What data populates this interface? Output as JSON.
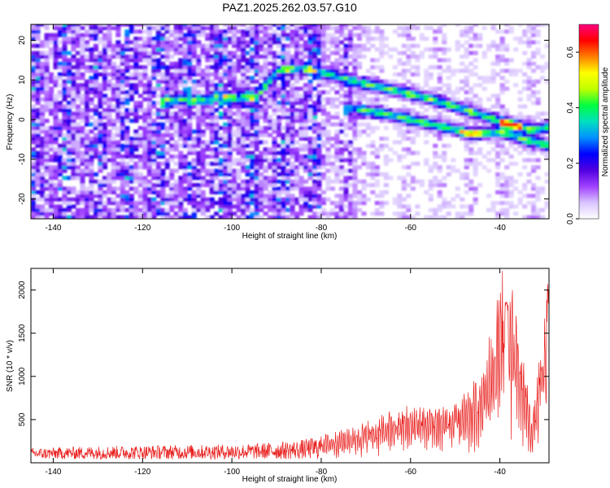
{
  "figure": {
    "title": "PAZ1.2025.262.03.57.G10"
  },
  "chart_data": [
    {
      "type": "heatmap",
      "title": "PAZ1.2025.262.03.57.G10",
      "xlabel": "Height of straight line (km)",
      "ylabel": "Frequency (Hz)",
      "xlim": [
        -145,
        -29
      ],
      "ylim": [
        -25,
        24
      ],
      "x_ticks": [
        -140,
        -120,
        -100,
        -80,
        -60,
        -40
      ],
      "y_ticks": [
        -20,
        -10,
        0,
        10,
        20
      ],
      "grid": false,
      "colorbar": {
        "label": "Normalized spectral amplitude",
        "range": [
          0,
          0.7
        ],
        "ticks": [
          0.0,
          0.2,
          0.4,
          0.6
        ],
        "colormap": [
          "#ffffff",
          "#d9c4ff",
          "#a040ff",
          "#5000e0",
          "#0000ff",
          "#0090ff",
          "#00e0c0",
          "#00ff40",
          "#c0ff00",
          "#ffff00",
          "#ff8000",
          "#ff0000",
          "#ff0080"
        ]
      },
      "features": [
        {
          "name": "tone-upper",
          "points": [
            [
              -116,
              4.5
            ],
            [
              -108,
              4.8
            ],
            [
              -95,
              5.5
            ],
            [
              -90,
              12
            ],
            [
              -85,
              12.5
            ],
            [
              -80,
              11.5
            ],
            [
              -72,
              9
            ],
            [
              -68,
              8
            ],
            [
              -62,
              6.5
            ],
            [
              -55,
              4.5
            ],
            [
              -48,
              2
            ],
            [
              -40,
              -1
            ],
            [
              -33,
              -3
            ],
            [
              -29,
              -2
            ]
          ]
        },
        {
          "name": "tone-lower",
          "points": [
            [
              -75,
              2.5
            ],
            [
              -68,
              1.5
            ],
            [
              -60,
              -0.5
            ],
            [
              -52,
              -2.5
            ],
            [
              -47,
              -4
            ],
            [
              -40,
              -3.5
            ],
            [
              -35,
              -5.5
            ],
            [
              -29,
              -7
            ]
          ]
        }
      ]
    },
    {
      "type": "line",
      "xlabel": "Height of straight line (km)",
      "ylabel": "SNR (10 * v/v)",
      "xlim": [
        -145,
        -29
      ],
      "ylim": [
        0,
        2250
      ],
      "x_ticks": [
        -140,
        -120,
        -100,
        -80,
        -60,
        -40
      ],
      "y_ticks": [
        500,
        1000,
        1500,
        2000
      ],
      "grid": false,
      "line_color": "#e8201e",
      "series": [
        {
          "envelope": [
            [
              -145,
              130
            ],
            [
              -130,
              150
            ],
            [
              -110,
              160
            ],
            [
              -95,
              170
            ],
            [
              -85,
              200
            ],
            [
              -80,
              240
            ],
            [
              -75,
              300
            ],
            [
              -70,
              380
            ],
            [
              -66,
              450
            ],
            [
              -62,
              520
            ],
            [
              -58,
              560
            ],
            [
              -54,
              560
            ],
            [
              -50,
              580
            ],
            [
              -47,
              650
            ],
            [
              -44,
              880
            ],
            [
              -42,
              1250
            ],
            [
              -40,
              1800
            ],
            [
              -38.5,
              1900
            ],
            [
              -37,
              1600
            ],
            [
              -35.5,
              1250
            ],
            [
              -34,
              800
            ],
            [
              -33,
              450
            ],
            [
              -32,
              650
            ],
            [
              -31,
              1100
            ],
            [
              -30,
              1450
            ],
            [
              -29,
              2250
            ]
          ]
        }
      ]
    }
  ]
}
